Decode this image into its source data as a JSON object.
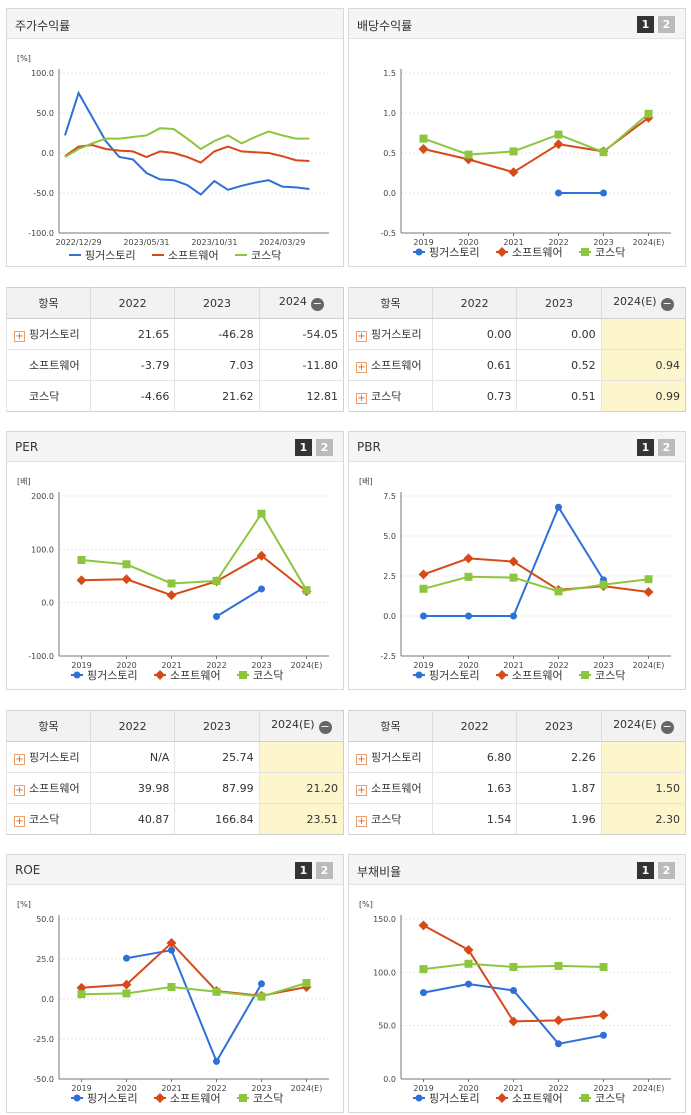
{
  "panels": {
    "stock": {
      "title": "주가수익률",
      "table": {
        "header": [
          "항목",
          "2022",
          "2023",
          "2024"
        ],
        "rows": [
          {
            "label": "핑거스토리",
            "expand": true,
            "v": [
              "21.65",
              "-46.28",
              "-54.05"
            ]
          },
          {
            "label": "소프트웨어",
            "expand": false,
            "v": [
              "-3.79",
              "7.03",
              "-11.80"
            ]
          },
          {
            "label": "코스닥",
            "expand": false,
            "v": [
              "-4.66",
              "21.62",
              "12.81"
            ]
          }
        ]
      }
    },
    "dividend": {
      "title": "배당수익률",
      "btn1": "1",
      "btn2": "2",
      "table": {
        "header": [
          "항목",
          "2022",
          "2023",
          "2024(E)"
        ],
        "rows": [
          {
            "label": "핑거스토리",
            "expand": true,
            "v": [
              "0.00",
              "0.00",
              ""
            ]
          },
          {
            "label": "소프트웨어",
            "expand": true,
            "v": [
              "0.61",
              "0.52",
              "0.94"
            ]
          },
          {
            "label": "코스닥",
            "expand": true,
            "v": [
              "0.73",
              "0.51",
              "0.99"
            ]
          }
        ]
      }
    },
    "per": {
      "title": "PER",
      "btn1": "1",
      "btn2": "2",
      "table": {
        "header": [
          "항목",
          "2022",
          "2023",
          "2024(E)"
        ],
        "rows": [
          {
            "label": "핑거스토리",
            "expand": true,
            "v": [
              "N/A",
              "25.74",
              ""
            ]
          },
          {
            "label": "소프트웨어",
            "expand": true,
            "v": [
              "39.98",
              "87.99",
              "21.20"
            ]
          },
          {
            "label": "코스닥",
            "expand": true,
            "v": [
              "40.87",
              "166.84",
              "23.51"
            ]
          }
        ]
      }
    },
    "pbr": {
      "title": "PBR",
      "btn1": "1",
      "btn2": "2",
      "table": {
        "header": [
          "항목",
          "2022",
          "2023",
          "2024(E)"
        ],
        "rows": [
          {
            "label": "핑거스토리",
            "expand": true,
            "v": [
              "6.80",
              "2.26",
              ""
            ]
          },
          {
            "label": "소프트웨어",
            "expand": true,
            "v": [
              "1.63",
              "1.87",
              "1.50"
            ]
          },
          {
            "label": "코스닥",
            "expand": true,
            "v": [
              "1.54",
              "1.96",
              "2.30"
            ]
          }
        ]
      }
    },
    "roe": {
      "title": "ROE",
      "btn1": "1",
      "btn2": "2"
    },
    "debt": {
      "title": "부채비율",
      "btn1": "1",
      "btn2": "2"
    }
  },
  "colors": {
    "finger": "#2f6fd8",
    "software": "#d64a1a",
    "kosdaq": "#8cc63e"
  },
  "chart_data": [
    {
      "id": "stock",
      "type": "line",
      "unit": "[%]",
      "ylim": [
        -100,
        100
      ],
      "yticks": [
        "100.0",
        "50.0",
        "0.0",
        "-50.0",
        "-100.0"
      ],
      "xticks": [
        "2022/12/29",
        "2023/05/31",
        "2023/10/31",
        "2024/03/29"
      ],
      "x": [
        "2022/11",
        "2022/12",
        "2023/01",
        "2023/02",
        "2023/03",
        "2023/04",
        "2023/05",
        "2023/06",
        "2023/07",
        "2023/08",
        "2023/09",
        "2023/10",
        "2023/11",
        "2023/12",
        "2024/01",
        "2024/02",
        "2024/03",
        "2024/04",
        "2024/05",
        "2024/06"
      ],
      "series": [
        {
          "name": "핑거스토리",
          "color": "#2f6fd8",
          "values": [
            22,
            75,
            45,
            15,
            -5,
            -8,
            -25,
            -33,
            -34,
            -40,
            -52,
            -35,
            -46,
            -41,
            -37,
            -34,
            -42,
            -43,
            -45,
            null
          ]
        },
        {
          "name": "소프트웨어",
          "color": "#d64a1a",
          "values": [
            -4,
            8,
            10,
            5,
            3,
            2,
            -5,
            2,
            0,
            -5,
            -12,
            2,
            8,
            2,
            1,
            0,
            -4,
            -9,
            -10,
            null
          ]
        },
        {
          "name": "코스닥",
          "color": "#8cc63e",
          "values": [
            -5,
            5,
            12,
            18,
            18,
            20,
            22,
            31,
            30,
            18,
            5,
            15,
            22,
            12,
            20,
            27,
            22,
            18,
            18,
            null
          ]
        }
      ],
      "legend": "bottom"
    },
    {
      "id": "dividend",
      "type": "line",
      "ylim": [
        -0.5,
        1.5
      ],
      "yticks": [
        "1.5",
        "1.0",
        "0.5",
        "0.0",
        "-0.5"
      ],
      "categories": [
        "2019",
        "2020",
        "2021",
        "2022",
        "2023",
        "2024(E)"
      ],
      "series": [
        {
          "name": "핑거스토리",
          "color": "#2f6fd8",
          "values": [
            null,
            null,
            null,
            0.0,
            0.0,
            null
          ]
        },
        {
          "name": "소프트웨어",
          "color": "#d64a1a",
          "values": [
            0.55,
            0.42,
            0.26,
            0.61,
            0.52,
            0.94
          ]
        },
        {
          "name": "코스닥",
          "color": "#8cc63e",
          "values": [
            0.68,
            0.48,
            0.52,
            0.73,
            0.51,
            0.99
          ]
        }
      ],
      "legend": "bottom"
    },
    {
      "id": "per",
      "type": "line",
      "unit": "[배]",
      "ylim": [
        -100,
        200
      ],
      "yticks": [
        "200.0",
        "100.0",
        "0.0",
        "-100.0"
      ],
      "categories": [
        "2019",
        "2020",
        "2021",
        "2022",
        "2023",
        "2024(E)"
      ],
      "series": [
        {
          "name": "핑거스토리",
          "color": "#2f6fd8",
          "values": [
            null,
            null,
            null,
            -26,
            25.74,
            null
          ]
        },
        {
          "name": "소프트웨어",
          "color": "#d64a1a",
          "values": [
            42,
            44,
            14,
            39.98,
            87.99,
            21.2
          ]
        },
        {
          "name": "코스닥",
          "color": "#8cc63e",
          "values": [
            80,
            72,
            36,
            40.87,
            166.84,
            23.51
          ]
        }
      ],
      "legend": "bottom"
    },
    {
      "id": "pbr",
      "type": "line",
      "unit": "[배]",
      "ylim": [
        -2.5,
        7.5
      ],
      "yticks": [
        "7.5",
        "5.0",
        "2.5",
        "0.0",
        "-2.5"
      ],
      "categories": [
        "2019",
        "2020",
        "2021",
        "2022",
        "2023",
        "2024(E)"
      ],
      "series": [
        {
          "name": "핑거스토리",
          "color": "#2f6fd8",
          "values": [
            0.0,
            0.0,
            0.0,
            6.8,
            2.26,
            null
          ]
        },
        {
          "name": "소프트웨어",
          "color": "#d64a1a",
          "values": [
            2.6,
            3.6,
            3.4,
            1.63,
            1.87,
            1.5
          ]
        },
        {
          "name": "코스닥",
          "color": "#8cc63e",
          "values": [
            1.7,
            2.45,
            2.4,
            1.54,
            1.96,
            2.3
          ]
        }
      ],
      "legend": "bottom"
    },
    {
      "id": "roe",
      "type": "line",
      "unit": "[%]",
      "ylim": [
        -50,
        50
      ],
      "yticks": [
        "50.0",
        "25.0",
        "0.0",
        "-25.0",
        "-50.0"
      ],
      "categories": [
        "2019",
        "2020",
        "2021",
        "2022",
        "2023",
        "2024(E)"
      ],
      "series": [
        {
          "name": "핑거스토리",
          "color": "#2f6fd8",
          "values": [
            null,
            25.5,
            30.5,
            -39,
            9.5,
            null
          ]
        },
        {
          "name": "소프트웨어",
          "color": "#d64a1a",
          "values": [
            7,
            9,
            35,
            5,
            2,
            7.5
          ]
        },
        {
          "name": "코스닥",
          "color": "#8cc63e",
          "values": [
            3,
            3.5,
            7.5,
            4.5,
            1.5,
            10
          ]
        }
      ],
      "legend": "bottom"
    },
    {
      "id": "debt",
      "type": "line",
      "unit": "[%]",
      "ylim": [
        0,
        150
      ],
      "yticks": [
        "150.0",
        "100.0",
        "50.0",
        "0.0"
      ],
      "categories": [
        "2019",
        "2020",
        "2021",
        "2022",
        "2023",
        "2024(E)"
      ],
      "series": [
        {
          "name": "핑거스토리",
          "color": "#2f6fd8",
          "values": [
            81,
            89,
            83,
            33,
            41,
            null
          ]
        },
        {
          "name": "소프트웨어",
          "color": "#d64a1a",
          "values": [
            144,
            121,
            54,
            55,
            60,
            null
          ]
        },
        {
          "name": "코스닥",
          "color": "#8cc63e",
          "values": [
            103,
            108,
            105,
            106,
            105,
            null
          ]
        }
      ],
      "legend": "bottom"
    }
  ]
}
